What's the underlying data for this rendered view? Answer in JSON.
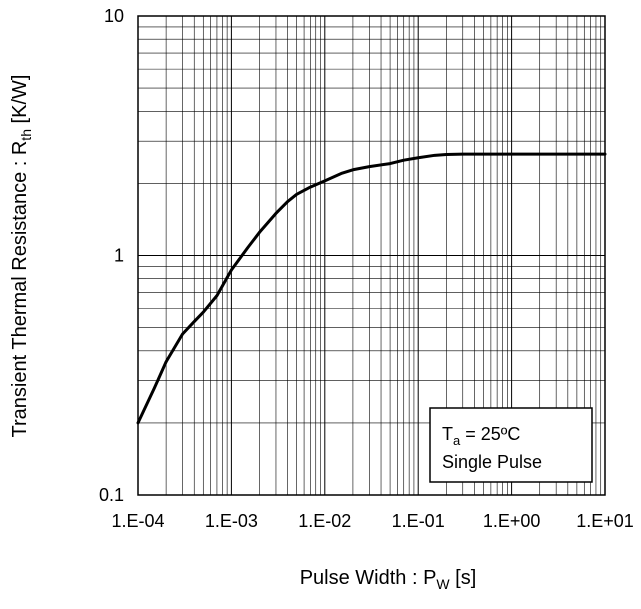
{
  "chart_data": {
    "type": "line",
    "x_scale": "log",
    "y_scale": "log",
    "xlim": [
      0.0001,
      10
    ],
    "ylim": [
      0.1,
      10
    ],
    "grid": true,
    "x_tick_labels": [
      "1.E-04",
      "1.E-03",
      "1.E-02",
      "1.E-01",
      "1.E+00",
      "1.E+01"
    ],
    "y_tick_labels": [
      "0.1",
      "1",
      "10"
    ],
    "xlabel": {
      "main": "Pulse Width : P",
      "sub": "W",
      "tail": " [s]"
    },
    "ylabel": {
      "main": "Transient Thermal Resistance : R",
      "sub": "th",
      "tail": " [K/W]"
    },
    "annotation": {
      "line1_main": "T",
      "line1_sub": "a",
      "line1_tail": " = 25ºC",
      "line2": "Single Pulse"
    },
    "series": [
      {
        "color": "#000000",
        "x": [
          0.0001,
          0.00015,
          0.0002,
          0.0003,
          0.0004,
          0.0005,
          0.0007,
          0.001,
          0.0015,
          0.002,
          0.003,
          0.004,
          0.005,
          0.007,
          0.01,
          0.015,
          0.02,
          0.03,
          0.05,
          0.07,
          0.1,
          0.15,
          0.2,
          0.3,
          0.5,
          1,
          2,
          5,
          10
        ],
        "y": [
          0.2,
          0.28,
          0.36,
          0.47,
          0.53,
          0.58,
          0.68,
          0.87,
          1.08,
          1.25,
          1.5,
          1.68,
          1.8,
          1.93,
          2.05,
          2.2,
          2.28,
          2.35,
          2.42,
          2.5,
          2.56,
          2.62,
          2.64,
          2.65,
          2.65,
          2.65,
          2.65,
          2.65,
          2.65
        ]
      }
    ]
  }
}
